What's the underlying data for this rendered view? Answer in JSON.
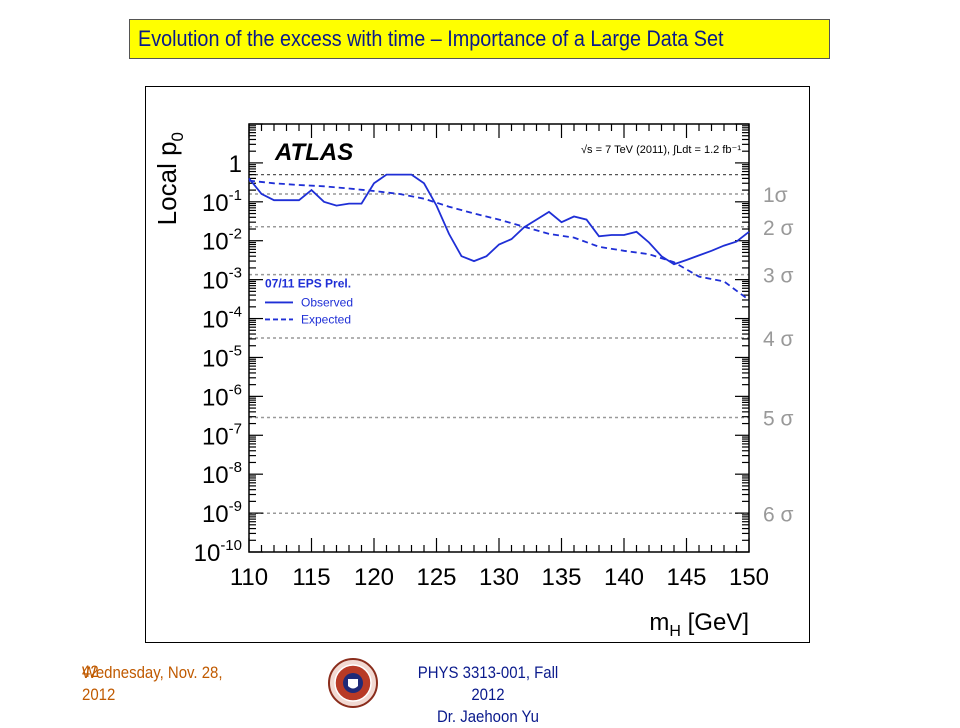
{
  "slide": {
    "title": "Evolution of the excess with time – Importance of a Large Data Set",
    "footer_date": "Wednesday, Nov. 28, 2012",
    "footer_page": "42",
    "footer_course_line1": "PHYS 3313-001, Fall 2012",
    "footer_course_line2": "Dr. Jaehoon Yu",
    "colors": {
      "title_bg": "#ffff00",
      "title_text": "#0a1a8c",
      "footer_date": "#c05a00",
      "series": "#1f2fd6",
      "sigma_lines": "#999999"
    },
    "icons": {
      "logo": "university-seal-icon"
    }
  },
  "chart_data": {
    "type": "line",
    "brand": "ATLAS",
    "energy_label": "√s = 7 TeV (2011), ∫Ldt = 1.2 fb⁻¹",
    "legend_title": "07/11 EPS Prel.",
    "legend_placement": "middle-left",
    "xlabel_main": "m",
    "xlabel_sub": "H",
    "xlabel_unit": " [GeV]",
    "ylabel_main": "Local p",
    "ylabel_sub": "0",
    "xlim": [
      110,
      150
    ],
    "ylim": [
      1e-10,
      10
    ],
    "yscale": "log",
    "x_ticks": [
      "110",
      "115",
      "120",
      "125",
      "130",
      "135",
      "140",
      "145",
      "150"
    ],
    "y_ticks": [
      {
        "base": "1",
        "exp": ""
      },
      {
        "base": "10",
        "exp": "-1"
      },
      {
        "base": "10",
        "exp": "-2"
      },
      {
        "base": "10",
        "exp": "-3"
      },
      {
        "base": "10",
        "exp": "-4"
      },
      {
        "base": "10",
        "exp": "-5"
      },
      {
        "base": "10",
        "exp": "-6"
      },
      {
        "base": "10",
        "exp": "-7"
      },
      {
        "base": "10",
        "exp": "-8"
      },
      {
        "base": "10",
        "exp": "-9"
      },
      {
        "base": "10",
        "exp": "-10"
      }
    ],
    "sigma_lines": [
      {
        "label": "1σ",
        "p": 0.159
      },
      {
        "label": "2 σ",
        "p": 0.0228
      },
      {
        "label": "3 σ",
        "p": 0.00135
      },
      {
        "label": "4 σ",
        "p": 3.17e-05
      },
      {
        "label": "5 σ",
        "p": 2.87e-07
      },
      {
        "label": "6 σ",
        "p": 9.87e-10
      }
    ],
    "reference_line_p": 0.5,
    "series": [
      {
        "name": "Observed",
        "style": "solid",
        "x": [
          110,
          111,
          112,
          113,
          114,
          115,
          116,
          117,
          118,
          119,
          120,
          121,
          122,
          123,
          124,
          125,
          126,
          127,
          128,
          129,
          130,
          131,
          132,
          133,
          134,
          135,
          136,
          137,
          138,
          139,
          140,
          141,
          142,
          143,
          144,
          145,
          146,
          147,
          148,
          149,
          150
        ],
        "y": [
          0.4,
          0.16,
          0.11,
          0.11,
          0.11,
          0.2,
          0.1,
          0.08,
          0.09,
          0.09,
          0.3,
          0.5,
          0.5,
          0.5,
          0.3,
          0.08,
          0.015,
          0.004,
          0.003,
          0.004,
          0.008,
          0.011,
          0.022,
          0.035,
          0.055,
          0.03,
          0.042,
          0.035,
          0.013,
          0.014,
          0.014,
          0.017,
          0.009,
          0.004,
          0.0025,
          0.0032,
          0.0042,
          0.0055,
          0.0075,
          0.0095,
          0.017
        ]
      },
      {
        "name": "Expected",
        "style": "dashed",
        "x": [
          110,
          112,
          114,
          116,
          118,
          120,
          122,
          124,
          126,
          128,
          130,
          132,
          134,
          136,
          138,
          140,
          142,
          144,
          146,
          148,
          150
        ],
        "y": [
          0.35,
          0.3,
          0.27,
          0.25,
          0.22,
          0.19,
          0.16,
          0.12,
          0.075,
          0.05,
          0.035,
          0.023,
          0.015,
          0.012,
          0.007,
          0.0055,
          0.0045,
          0.0028,
          0.0012,
          0.0009,
          0.0003
        ]
      }
    ]
  }
}
